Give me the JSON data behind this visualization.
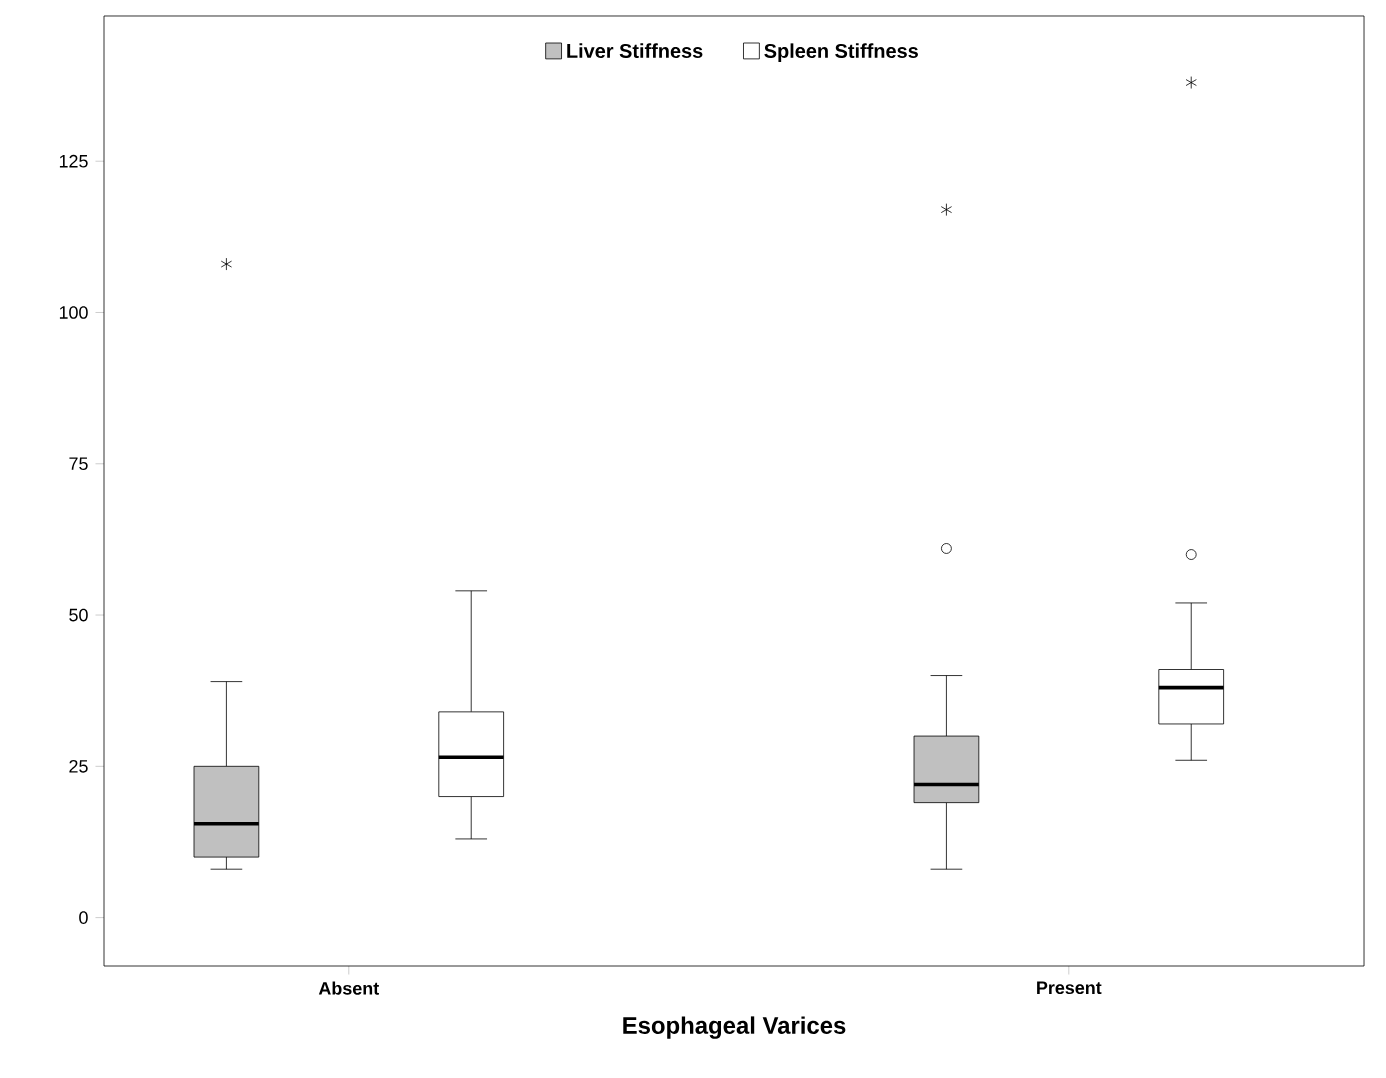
{
  "chart_data": {
    "type": "box",
    "xlabel": "Esophageal Varices",
    "categories": [
      "Absent",
      "Present"
    ],
    "series": [
      {
        "name": "Liver Stiffness",
        "color": "#c0c0c0",
        "boxes": [
          {
            "low": 8,
            "q1": 10,
            "median": 15.5,
            "q3": 25,
            "high": 39,
            "outliers": [
              108
            ]
          },
          {
            "low": 8,
            "q1": 19,
            "median": 22,
            "q3": 30,
            "high": 40,
            "outliers": [
              61,
              117
            ]
          }
        ]
      },
      {
        "name": "Spleen Stiffness",
        "color": "#ffffff",
        "boxes": [
          {
            "low": 13,
            "q1": 20,
            "median": 26.5,
            "q3": 34,
            "high": 54
          },
          {
            "low": 26,
            "q1": 32,
            "median": 38,
            "q3": 41,
            "high": 52,
            "outliers": [
              60,
              138
            ]
          }
        ]
      }
    ],
    "ylim": [
      -8,
      149
    ],
    "yticks": [
      0,
      25,
      50,
      75,
      100,
      125
    ],
    "grid": false,
    "legend": "top"
  }
}
